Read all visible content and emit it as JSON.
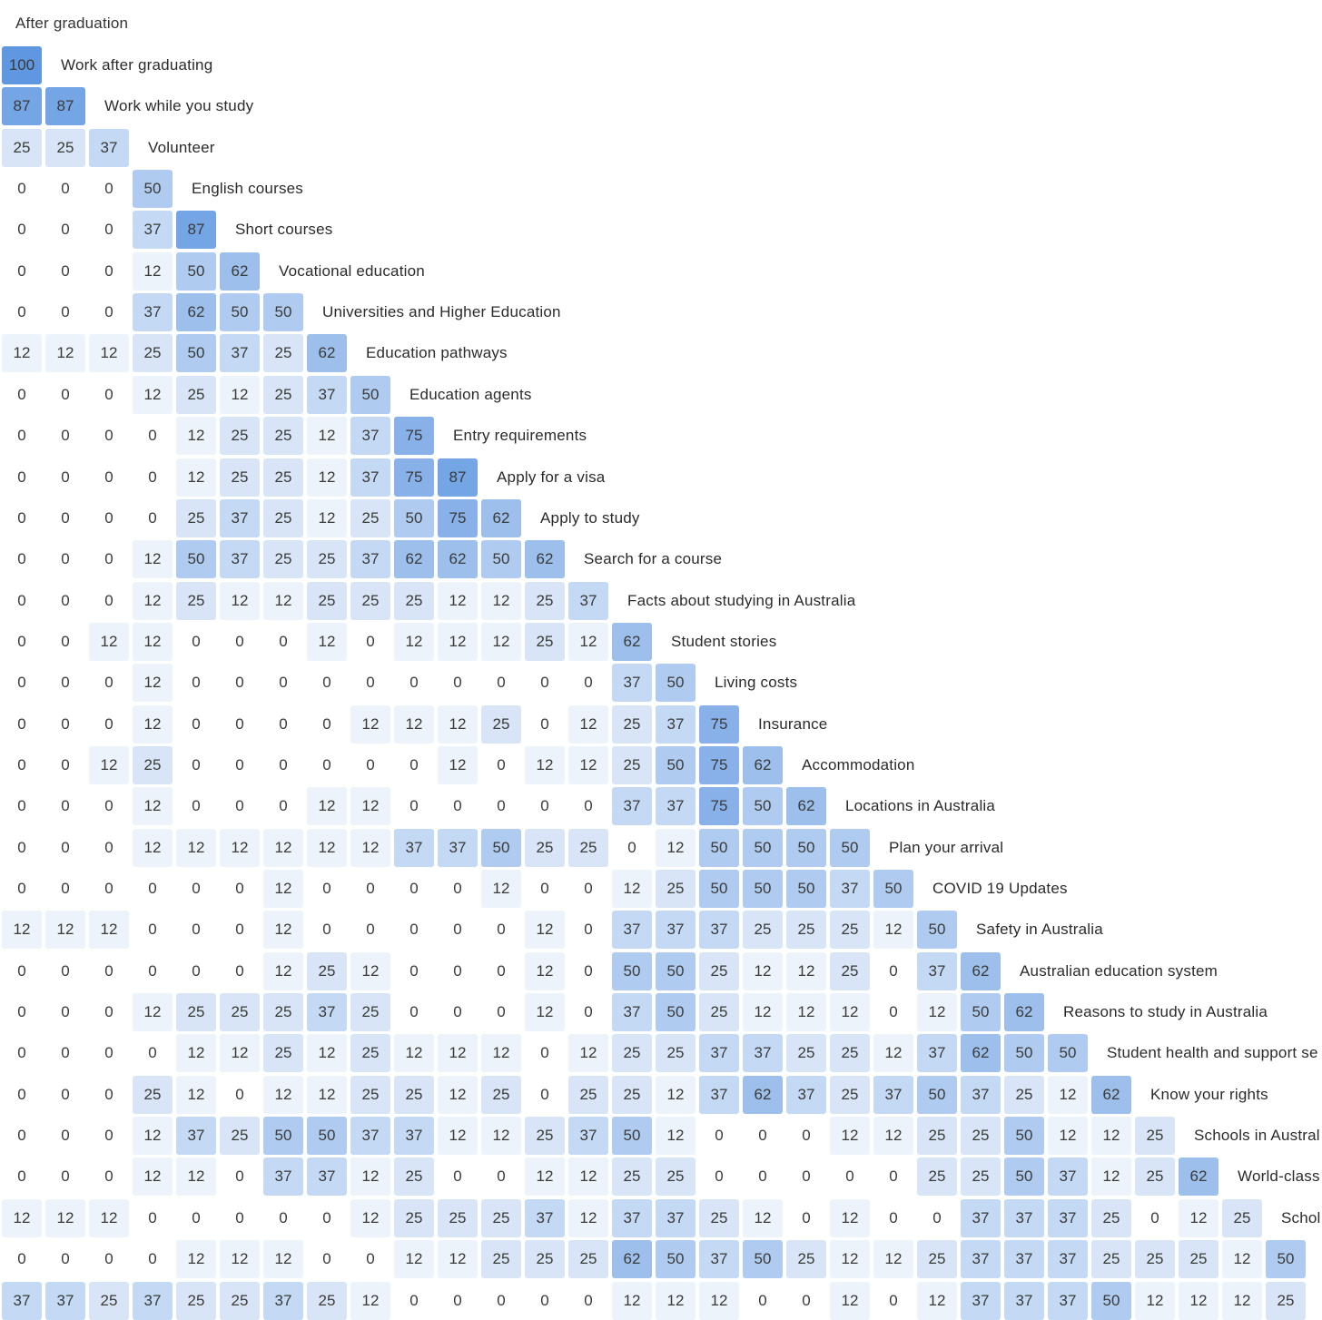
{
  "chart_data": {
    "type": "heatmap",
    "title": "",
    "top_label": "After graduation",
    "color_scale": {
      "min": 0,
      "max": 100,
      "low": "#ffffff",
      "high": "#5f97e0"
    },
    "labels": [
      "Work after graduating",
      "Work while you study",
      "Volunteer",
      "English courses",
      "Short courses",
      "Vocational education",
      "Universities and Higher Education",
      "Education pathways",
      "Education agents",
      "Entry requirements",
      "Apply for a visa",
      "Apply to study",
      "Search for a course",
      "Facts about studying in Australia",
      "Student stories",
      "Living costs",
      "Insurance",
      "Accommodation",
      "Locations in Australia",
      "Plan your arrival",
      "COVID 19 Updates",
      "Safety in Australia",
      "Australian education system",
      "Reasons to study in Australia",
      "Student health and support se",
      "Know your rights",
      "Schools in Austral",
      "World-class",
      "Schol",
      "",
      ""
    ],
    "rows": [
      [
        100
      ],
      [
        87,
        87
      ],
      [
        25,
        25,
        37
      ],
      [
        0,
        0,
        0,
        50
      ],
      [
        0,
        0,
        0,
        37,
        87
      ],
      [
        0,
        0,
        0,
        12,
        50,
        62
      ],
      [
        0,
        0,
        0,
        37,
        62,
        50,
        50
      ],
      [
        12,
        12,
        12,
        25,
        50,
        37,
        25,
        62
      ],
      [
        0,
        0,
        0,
        12,
        25,
        12,
        25,
        37,
        50
      ],
      [
        0,
        0,
        0,
        0,
        12,
        25,
        25,
        12,
        37,
        75
      ],
      [
        0,
        0,
        0,
        0,
        12,
        25,
        25,
        12,
        37,
        75,
        87
      ],
      [
        0,
        0,
        0,
        0,
        25,
        37,
        25,
        12,
        25,
        50,
        75,
        62
      ],
      [
        0,
        0,
        0,
        12,
        50,
        37,
        25,
        25,
        37,
        62,
        62,
        50,
        62
      ],
      [
        0,
        0,
        0,
        12,
        25,
        12,
        12,
        25,
        25,
        25,
        12,
        12,
        25,
        37
      ],
      [
        0,
        0,
        12,
        12,
        0,
        0,
        0,
        12,
        0,
        12,
        12,
        12,
        25,
        12,
        62
      ],
      [
        0,
        0,
        0,
        12,
        0,
        0,
        0,
        0,
        0,
        0,
        0,
        0,
        0,
        0,
        37,
        50
      ],
      [
        0,
        0,
        0,
        12,
        0,
        0,
        0,
        0,
        12,
        12,
        12,
        25,
        0,
        12,
        25,
        37,
        75
      ],
      [
        0,
        0,
        12,
        25,
        0,
        0,
        0,
        0,
        0,
        0,
        12,
        0,
        12,
        12,
        25,
        50,
        75,
        62
      ],
      [
        0,
        0,
        0,
        12,
        0,
        0,
        0,
        12,
        12,
        0,
        0,
        0,
        0,
        0,
        37,
        37,
        75,
        50,
        62
      ],
      [
        0,
        0,
        0,
        12,
        12,
        12,
        12,
        12,
        12,
        37,
        37,
        50,
        25,
        25,
        0,
        12,
        50,
        50,
        50,
        50
      ],
      [
        0,
        0,
        0,
        0,
        0,
        0,
        12,
        0,
        0,
        0,
        0,
        12,
        0,
        0,
        12,
        25,
        50,
        50,
        50,
        37,
        50
      ],
      [
        12,
        12,
        12,
        0,
        0,
        0,
        12,
        0,
        0,
        0,
        0,
        0,
        12,
        0,
        37,
        37,
        37,
        25,
        25,
        25,
        12,
        50
      ],
      [
        0,
        0,
        0,
        0,
        0,
        0,
        12,
        25,
        12,
        0,
        0,
        0,
        12,
        0,
        50,
        50,
        25,
        12,
        12,
        25,
        0,
        37,
        62
      ],
      [
        0,
        0,
        0,
        12,
        25,
        25,
        25,
        37,
        25,
        0,
        0,
        0,
        12,
        0,
        37,
        50,
        25,
        12,
        12,
        12,
        0,
        12,
        50,
        62
      ],
      [
        0,
        0,
        0,
        0,
        12,
        12,
        25,
        12,
        25,
        12,
        12,
        12,
        0,
        12,
        25,
        25,
        37,
        37,
        25,
        25,
        12,
        37,
        62,
        50,
        50
      ],
      [
        0,
        0,
        0,
        25,
        12,
        0,
        12,
        12,
        25,
        25,
        12,
        25,
        0,
        25,
        25,
        12,
        37,
        62,
        37,
        25,
        37,
        50,
        37,
        25,
        12,
        62
      ],
      [
        0,
        0,
        0,
        12,
        37,
        25,
        50,
        50,
        37,
        37,
        12,
        12,
        25,
        37,
        50,
        12,
        0,
        0,
        0,
        12,
        12,
        25,
        25,
        50,
        12,
        12,
        25
      ],
      [
        0,
        0,
        0,
        12,
        12,
        0,
        37,
        37,
        12,
        25,
        0,
        0,
        12,
        12,
        25,
        25,
        0,
        0,
        0,
        0,
        0,
        25,
        25,
        50,
        37,
        12,
        25,
        62
      ],
      [
        12,
        12,
        12,
        0,
        0,
        0,
        0,
        0,
        12,
        25,
        25,
        25,
        37,
        12,
        37,
        37,
        25,
        12,
        0,
        12,
        0,
        0,
        37,
        37,
        37,
        25,
        0,
        12,
        25
      ],
      [
        0,
        0,
        0,
        0,
        12,
        12,
        12,
        0,
        0,
        12,
        12,
        25,
        25,
        25,
        62,
        50,
        37,
        50,
        25,
        12,
        12,
        25,
        37,
        37,
        37,
        25,
        25,
        25,
        12,
        50
      ],
      [
        37,
        37,
        25,
        37,
        25,
        25,
        37,
        25,
        12,
        0,
        0,
        0,
        0,
        0,
        12,
        12,
        12,
        0,
        0,
        12,
        0,
        12,
        37,
        37,
        37,
        50,
        12,
        12,
        12,
        25
      ]
    ]
  }
}
